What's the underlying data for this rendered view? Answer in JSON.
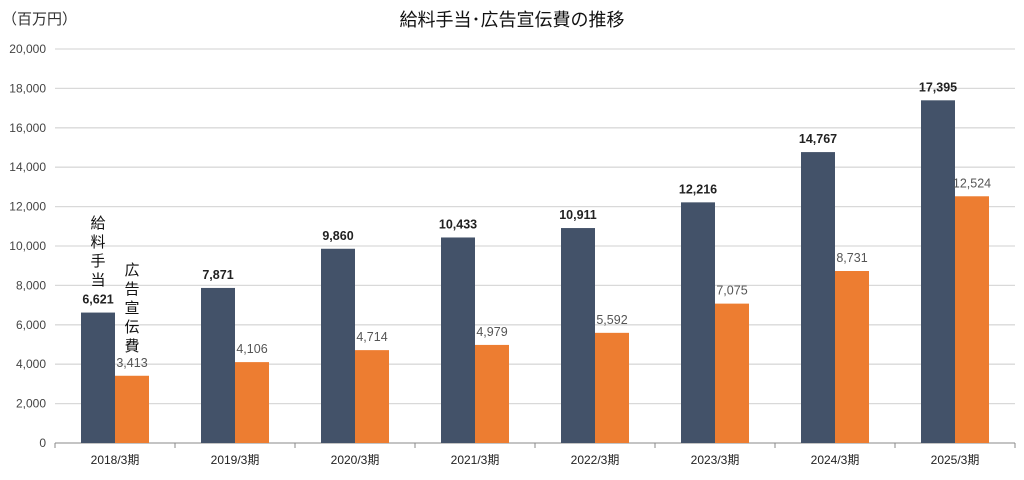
{
  "chart_data": {
    "type": "bar",
    "title": "給料手当･広告宣伝費の推移",
    "unit_label": "（百万円）",
    "categories": [
      "2018/3期",
      "2019/3期",
      "2020/3期",
      "2021/3期",
      "2022/3期",
      "2023/3期",
      "2024/3期",
      "2025/3期"
    ],
    "series": [
      {
        "name": "給料手当",
        "chars": [
          "給",
          "料",
          "手",
          "当"
        ],
        "color": "#435269",
        "values": [
          6621,
          7871,
          9860,
          10433,
          10911,
          12216,
          14767,
          17395
        ],
        "labels": [
          "6,621",
          "7,871",
          "9,860",
          "10,433",
          "10,911",
          "12,216",
          "14,767",
          "17,395"
        ]
      },
      {
        "name": "広告宣伝費",
        "chars": [
          "広",
          "告",
          "宣",
          "伝",
          "費"
        ],
        "color": "#ED7D31",
        "values": [
          3413,
          4106,
          4714,
          4979,
          5592,
          7075,
          8731,
          12524
        ],
        "labels": [
          "3,413",
          "4,106",
          "4,714",
          "4,979",
          "5,592",
          "7,075",
          "8,731",
          "12,524"
        ]
      }
    ],
    "ylim": [
      0,
      20000
    ],
    "yticks": [
      0,
      2000,
      4000,
      6000,
      8000,
      10000,
      12000,
      14000,
      16000,
      18000,
      20000
    ],
    "ytick_labels": [
      "0",
      "2,000",
      "4,000",
      "6,000",
      "8,000",
      "10,000",
      "12,000",
      "14,000",
      "16,000",
      "18,000",
      "20,000"
    ],
    "grid": true,
    "legend": "inline-vertical-over-first-group"
  }
}
